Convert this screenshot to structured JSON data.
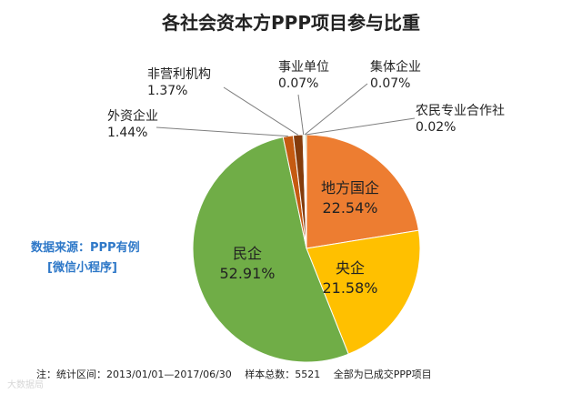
{
  "chart_data": {
    "type": "pie",
    "title": "各社会资本方PPP项目参与比重",
    "slices": [
      {
        "label": "地方国企",
        "value": 22.54,
        "value_text": "22.54%",
        "color": "#ed7d31"
      },
      {
        "label": "央企",
        "value": 21.58,
        "value_text": "21.58%",
        "color": "#ffc000"
      },
      {
        "label": "民企",
        "value": 52.91,
        "value_text": "52.91%",
        "color": "#70ad47"
      },
      {
        "label": "外资企业",
        "value": 1.44,
        "value_text": "1.44%",
        "color": "#c55a11"
      },
      {
        "label": "非营利机构",
        "value": 1.37,
        "value_text": "1.37%",
        "color": "#843c0c"
      },
      {
        "label": "事业单位",
        "value": 0.07,
        "value_text": "0.07%",
        "color": "#a9d18e"
      },
      {
        "label": "集体企业",
        "value": 0.07,
        "value_text": "0.07%",
        "color": "#ffd966"
      },
      {
        "label": "农民专业合作社",
        "value": 0.02,
        "value_text": "0.02%",
        "color": "#548235"
      }
    ],
    "legend": "none"
  },
  "annotations": {
    "source_line1": "数据来源：PPP有例",
    "source_line2": "[微信小程序]",
    "note": "注：统计区间：2013/01/01—2017/06/30　 样本总数：5521　 全部为已成交PPP项目",
    "watermark": "大数据局"
  },
  "colors": {
    "background": "#ffffff",
    "leader_line": "#7f7f7f",
    "source_text": "#2e78c8"
  }
}
